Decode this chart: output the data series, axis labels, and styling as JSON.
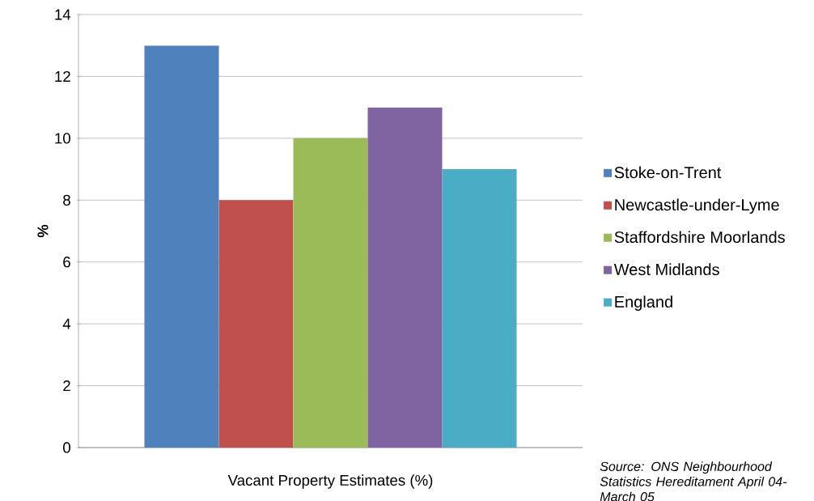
{
  "chart_data": {
    "type": "bar",
    "ylabel": "%",
    "categories": [
      "Vacant Property Estimates (%)"
    ],
    "series": [
      {
        "name": "Stoke-on-Trent",
        "color": "#4f81bd",
        "values": [
          13
        ]
      },
      {
        "name": "Newcastle-under-Lyme",
        "color": "#c0504d",
        "values": [
          8
        ]
      },
      {
        "name": "Staffordshire Moorlands",
        "color": "#9bbb59",
        "values": [
          10
        ]
      },
      {
        "name": "West Midlands",
        "color": "#8064a2",
        "values": [
          11
        ]
      },
      {
        "name": "England",
        "color": "#4bacc6",
        "values": [
          9
        ]
      }
    ],
    "ylim": [
      0,
      14
    ],
    "yticks": [
      0,
      2,
      4,
      6,
      8,
      10,
      12,
      14
    ],
    "grid": "y",
    "legend": "right",
    "annotations": [
      "*Source: ONS Neighbourhood Statistics Hereditament April 04-March 05*"
    ]
  }
}
